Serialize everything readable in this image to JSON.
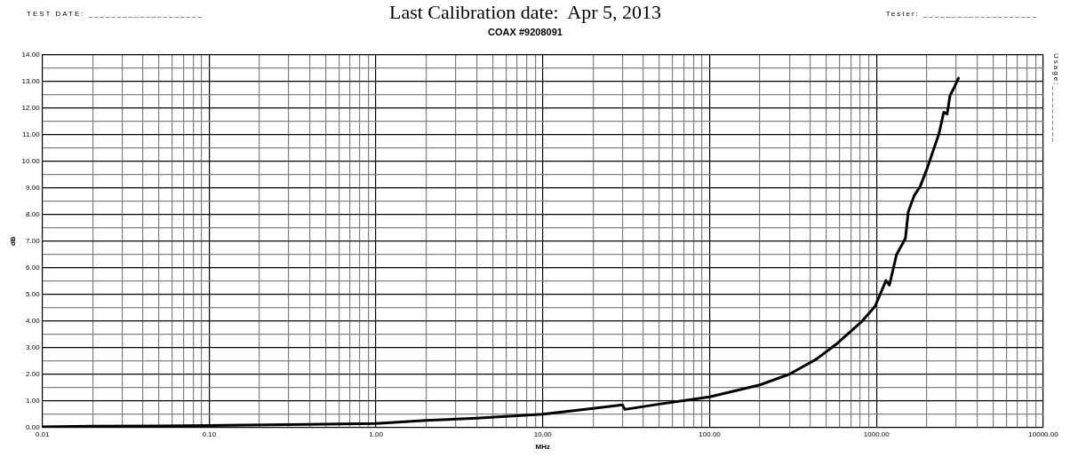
{
  "chart_data": {
    "type": "line",
    "title": "Last Calibration date:  Apr 5, 2013",
    "subtitle": "COAX #9208091",
    "xlabel": "MHz",
    "ylabel": "dB",
    "annotations": [
      "TEST DATE: ____________________",
      "Tester: ____________________",
      "Usage:__________"
    ],
    "log": "x",
    "grid": true,
    "legend": false,
    "marker": "none",
    "line_style": "solid",
    "xlim": [
      0.01,
      10000
    ],
    "ylim": [
      0,
      14
    ],
    "xticks": [
      {
        "value": 0.01,
        "label": "0.01"
      },
      {
        "value": 0.02,
        "label": null
      },
      {
        "value": 0.03,
        "label": null
      },
      {
        "value": 0.04,
        "label": null
      },
      {
        "value": 0.05,
        "label": null
      },
      {
        "value": 0.06,
        "label": null
      },
      {
        "value": 0.07,
        "label": null
      },
      {
        "value": 0.08,
        "label": null
      },
      {
        "value": 0.09,
        "label": null
      },
      {
        "value": 0.1,
        "label": "0.10"
      },
      {
        "value": 0.2,
        "label": null
      },
      {
        "value": 0.3,
        "label": null
      },
      {
        "value": 0.4,
        "label": null
      },
      {
        "value": 0.5,
        "label": null
      },
      {
        "value": 0.6,
        "label": null
      },
      {
        "value": 0.7,
        "label": null
      },
      {
        "value": 0.8,
        "label": null
      },
      {
        "value": 0.9,
        "label": null
      },
      {
        "value": 1,
        "label": "1.00"
      },
      {
        "value": 2,
        "label": null
      },
      {
        "value": 3,
        "label": null
      },
      {
        "value": 4,
        "label": null
      },
      {
        "value": 5,
        "label": null
      },
      {
        "value": 6,
        "label": null
      },
      {
        "value": 7,
        "label": null
      },
      {
        "value": 8,
        "label": null
      },
      {
        "value": 9,
        "label": null
      },
      {
        "value": 10,
        "label": "10.00"
      },
      {
        "value": 20,
        "label": null
      },
      {
        "value": 30,
        "label": null
      },
      {
        "value": 40,
        "label": null
      },
      {
        "value": 50,
        "label": null
      },
      {
        "value": 60,
        "label": null
      },
      {
        "value": 70,
        "label": null
      },
      {
        "value": 80,
        "label": null
      },
      {
        "value": 90,
        "label": null
      },
      {
        "value": 100,
        "label": "100.00"
      },
      {
        "value": 200,
        "label": null
      },
      {
        "value": 300,
        "label": null
      },
      {
        "value": 400,
        "label": null
      },
      {
        "value": 500,
        "label": null
      },
      {
        "value": 600,
        "label": null
      },
      {
        "value": 700,
        "label": null
      },
      {
        "value": 800,
        "label": null
      },
      {
        "value": 900,
        "label": null
      },
      {
        "value": 1000,
        "label": "1000.00"
      },
      {
        "value": 2000,
        "label": null
      },
      {
        "value": 3000,
        "label": null
      },
      {
        "value": 4000,
        "label": null
      },
      {
        "value": 5000,
        "label": null
      },
      {
        "value": 6000,
        "label": null
      },
      {
        "value": 7000,
        "label": null
      },
      {
        "value": 8000,
        "label": null
      },
      {
        "value": 9000,
        "label": null
      },
      {
        "value": 10000,
        "label": "10000.00"
      }
    ],
    "yticks": [
      {
        "value": 0,
        "label": "0.00"
      },
      {
        "value": 0.5,
        "label": null
      },
      {
        "value": 1,
        "label": "1.00"
      },
      {
        "value": 1.5,
        "label": null
      },
      {
        "value": 2,
        "label": "2.00"
      },
      {
        "value": 2.5,
        "label": null
      },
      {
        "value": 3,
        "label": "3.00"
      },
      {
        "value": 3.5,
        "label": null
      },
      {
        "value": 4,
        "label": "4.00"
      },
      {
        "value": 4.5,
        "label": null
      },
      {
        "value": 5,
        "label": "5.00"
      },
      {
        "value": 5.5,
        "label": null
      },
      {
        "value": 6,
        "label": "6.00"
      },
      {
        "value": 6.5,
        "label": null
      },
      {
        "value": 7,
        "label": "7.00"
      },
      {
        "value": 7.5,
        "label": null
      },
      {
        "value": 8,
        "label": "8.00"
      },
      {
        "value": 8.5,
        "label": null
      },
      {
        "value": 9,
        "label": "9.00"
      },
      {
        "value": 9.5,
        "label": null
      },
      {
        "value": 10,
        "label": "10.00"
      },
      {
        "value": 10.5,
        "label": null
      },
      {
        "value": 11,
        "label": "11.00"
      },
      {
        "value": 11.5,
        "label": null
      },
      {
        "value": 12,
        "label": "12.00"
      },
      {
        "value": 12.5,
        "label": null
      },
      {
        "value": 13,
        "label": "13.00"
      },
      {
        "value": 13.5,
        "label": null
      },
      {
        "value": 14,
        "label": "14.00"
      }
    ],
    "series": [
      {
        "color": "#000000",
        "x": [
          0.01,
          0.02,
          0.05,
          0.1,
          0.3,
          1,
          2,
          4,
          10,
          20,
          30,
          31,
          50,
          100,
          200,
          300,
          437,
          582,
          810,
          980,
          1140,
          1195,
          1320,
          1490,
          1550,
          1680,
          1830,
          2020,
          2200,
          2370,
          2530,
          2650,
          2760,
          2930,
          3100
        ],
        "values": [
          0.03,
          0.05,
          0.06,
          0.08,
          0.11,
          0.15,
          0.27,
          0.35,
          0.5,
          0.72,
          0.85,
          0.68,
          0.88,
          1.15,
          1.6,
          2.0,
          2.57,
          3.16,
          3.96,
          4.55,
          5.52,
          5.35,
          6.5,
          7.1,
          8.1,
          8.7,
          9.06,
          9.76,
          10.45,
          11.04,
          11.84,
          11.77,
          12.47,
          12.78,
          13.12
        ]
      }
    ]
  }
}
